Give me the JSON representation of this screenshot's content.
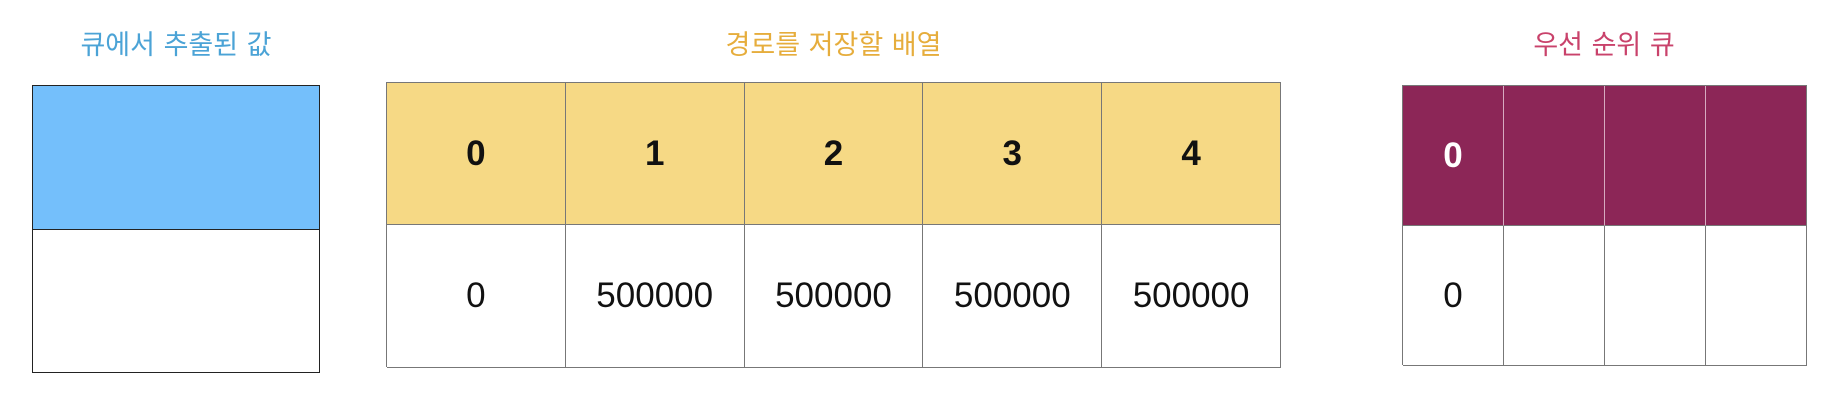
{
  "popped": {
    "title": "큐에서 추출된 값",
    "top_color": "#74bffb"
  },
  "path_array": {
    "title": "경로를 저장할 배열",
    "header_color": "#f6d985",
    "indices": [
      "0",
      "1",
      "2",
      "3",
      "4"
    ],
    "values": [
      "0",
      "500000",
      "500000",
      "500000",
      "500000"
    ]
  },
  "priority_queue": {
    "title": "우선 순위 큐",
    "header_color": "#8c2657",
    "keys": [
      "0",
      "",
      "",
      ""
    ],
    "values": [
      "0",
      "",
      "",
      ""
    ]
  },
  "colors": {
    "popped_title": "#4ba3d6",
    "path_title": "#e6ad3c",
    "pq_title": "#c9426b"
  }
}
